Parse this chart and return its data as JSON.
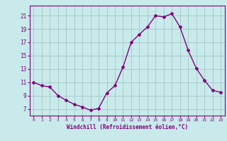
{
  "x": [
    0,
    1,
    2,
    3,
    4,
    5,
    6,
    7,
    8,
    9,
    10,
    11,
    12,
    13,
    14,
    15,
    16,
    17,
    18,
    19,
    20,
    21,
    22,
    23
  ],
  "y": [
    11,
    10.5,
    10.3,
    9,
    8.3,
    7.7,
    7.3,
    6.8,
    7.1,
    9.4,
    10.5,
    13.3,
    17.0,
    18.2,
    19.3,
    21.0,
    20.8,
    21.3,
    19.3,
    15.8,
    13.1,
    11.3,
    9.8,
    9.5
  ],
  "line_color": "#800080",
  "marker": "D",
  "marker_size": 2,
  "bg_color": "#c8eaea",
  "grid_color": "#a0c0c0",
  "xlabel": "Windchill (Refroidissement éolien,°C)",
  "xlabel_color": "#800080",
  "tick_color": "#800080",
  "label_color": "#800080",
  "xlim": [
    -0.5,
    23.5
  ],
  "ylim": [
    6.0,
    22.5
  ],
  "yticks": [
    7,
    9,
    11,
    13,
    15,
    17,
    19,
    21
  ],
  "xticks": [
    0,
    1,
    2,
    3,
    4,
    5,
    6,
    7,
    8,
    9,
    10,
    11,
    12,
    13,
    14,
    15,
    16,
    17,
    18,
    19,
    20,
    21,
    22,
    23
  ]
}
